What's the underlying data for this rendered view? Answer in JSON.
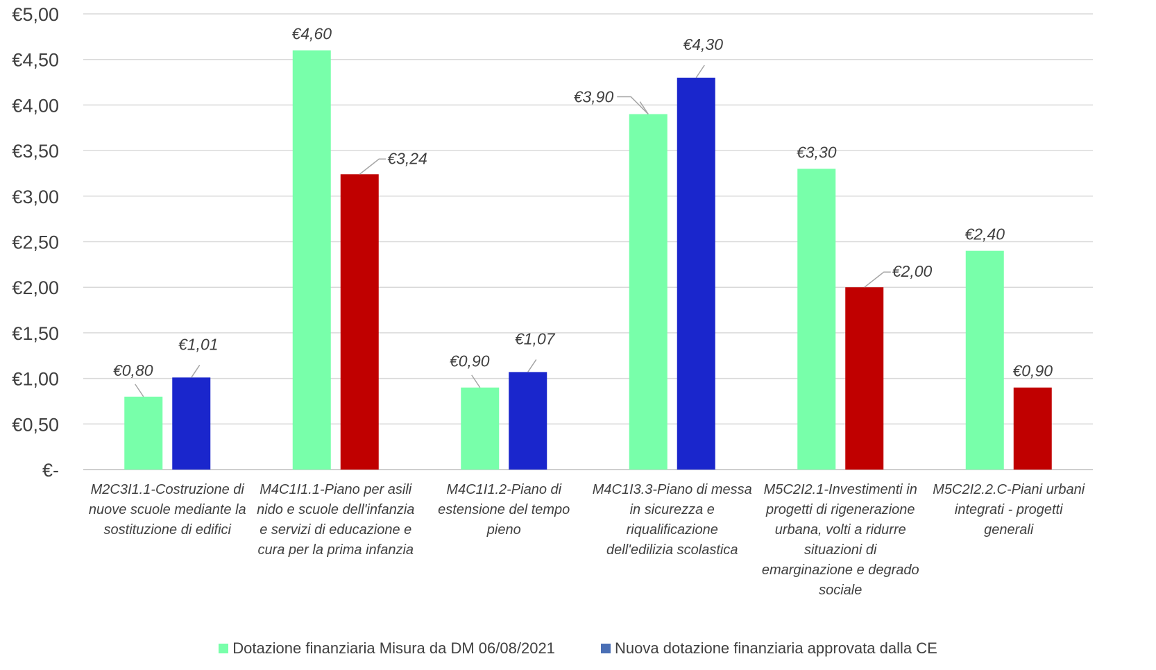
{
  "chart_data": {
    "type": "bar",
    "categories": [
      "M2C3I1.1-Costruzione di nuove scuole mediante la sostituzione di edifici",
      "M4C1I1.1-Piano per asili nido e scuole dell'infanzia e servizi di educazione e cura per la prima infanzia",
      "M4C1I1.2-Piano di estensione del tempo pieno",
      "M4C1I3.3-Piano di messa in sicurezza e riqualificazione dell'edilizia scolastica",
      "M5C2I2.1-Investimenti in progetti di rigenerazione urbana, volti a ridurre situazioni di emarginazione e degrado sociale",
      "M5C2I2.2.C-Piani urbani integrati - progetti generali"
    ],
    "category_lines": [
      [
        "M2C3I1.1-Costruzione di",
        "nuove scuole mediante la",
        "sostituzione di edifici"
      ],
      [
        "M4C1I1.1-Piano per asili",
        "nido e scuole dell'infanzia",
        "e servizi di educazione e",
        "cura per la prima infanzia"
      ],
      [
        "M4C1I1.2-Piano di",
        "estensione del tempo",
        "pieno"
      ],
      [
        "M4C1I3.3-Piano di messa",
        "in sicurezza e",
        "riqualificazione",
        "dell'edilizia scolastica"
      ],
      [
        "M5C2I2.1-Investimenti in",
        "progetti di rigenerazione",
        "urbana, volti a ridurre",
        "situazioni di",
        "emarginazione e degrado",
        "sociale"
      ],
      [
        "M5C2I2.2.C-Piani urbani",
        "integrati - progetti",
        "generali"
      ]
    ],
    "series": [
      {
        "name": "Dotazione finanziaria Misura da DM 06/08/2021",
        "color": "#78FFAA",
        "values": [
          0.8,
          4.6,
          0.9,
          3.9,
          3.3,
          2.4
        ],
        "labels": [
          "€0,80",
          "€4,60",
          "€0,90",
          "€3,90",
          "€3,30",
          "€2,40"
        ]
      },
      {
        "name": "Nuova dotazione finanziaria approvata dalla CE",
        "color": "#1A26CC",
        "point_colors": [
          "#1A26CC",
          "#C00000",
          "#1A26CC",
          "#1A26CC",
          "#C00000",
          "#C00000"
        ],
        "values": [
          1.01,
          3.24,
          1.07,
          4.3,
          2.0,
          0.9
        ],
        "labels": [
          "€1,01",
          "€3,24",
          "€1,07",
          "€4,30",
          "€2,00",
          "€0,90"
        ]
      }
    ],
    "ylim": [
      0,
      5
    ],
    "yticks": [
      0,
      0.5,
      1,
      1.5,
      2,
      2.5,
      3,
      3.5,
      4,
      4.5,
      5
    ],
    "ytick_labels": [
      "€-",
      "€0,50",
      "€1,00",
      "€1,50",
      "€2,00",
      "€2,50",
      "€3,00",
      "€3,50",
      "€4,00",
      "€4,50",
      "€5,00"
    ],
    "grid": true,
    "legend_position": "bottom",
    "legend_swatch_colors": [
      "#78FFAA",
      "#4A6FB5"
    ]
  }
}
